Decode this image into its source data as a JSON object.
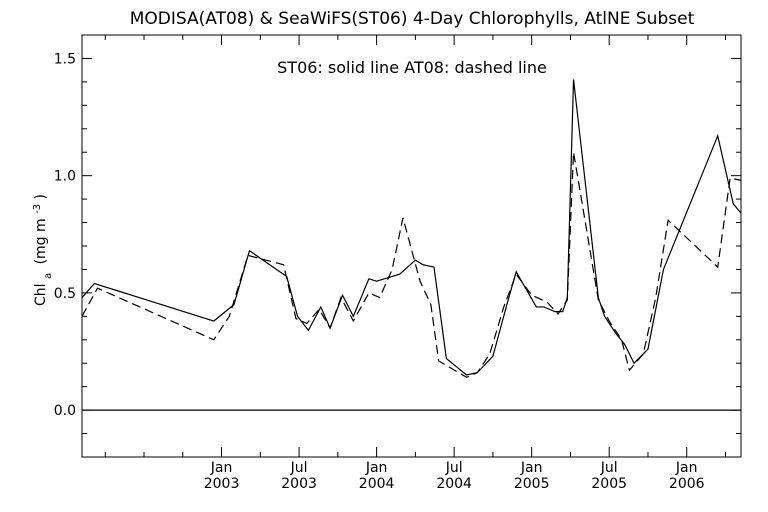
{
  "chart_data": {
    "type": "line",
    "title": "MODISA(AT08) & SeaWiFS(ST06) 4-Day Chlorophylls, AtlNE Subset",
    "annotation": "ST06: solid line   AT08: dashed line",
    "ylabel": "Chl",
    "ylabel_sub": "a",
    "ylabel_unit_prefix": "(mg m",
    "ylabel_unit_sup": "-3",
    "ylabel_unit_suffix": ")",
    "ylim": [
      -0.2,
      1.6
    ],
    "xlim": [
      2002.1,
      2006.35
    ],
    "y_ticks": [
      0.0,
      0.5,
      1.0,
      1.5
    ],
    "y_tick_labels": [
      "0.0",
      "0.5",
      "1.0",
      "1.5"
    ],
    "x_ticks": [
      2003.0,
      2003.5,
      2004.0,
      2004.5,
      2005.0,
      2005.5,
      2006.0
    ],
    "x_tick_labels_top": [
      "Jan",
      "Jul",
      "Jan",
      "Jul",
      "Jan",
      "Jul",
      "Jan"
    ],
    "x_tick_labels_bottom": [
      "2003",
      "2003",
      "2004",
      "2004",
      "2005",
      "2005",
      "2006"
    ],
    "zero_line": true,
    "grid": false,
    "series": [
      {
        "name": "ST06",
        "line_style": "solid",
        "x": [
          2002.1,
          2002.18,
          2002.95,
          2003.08,
          2003.18,
          2003.42,
          2003.49,
          2003.56,
          2003.64,
          2003.7,
          2003.78,
          2003.85,
          2003.95,
          2004.0,
          2004.1,
          2004.15,
          2004.25,
          2004.3,
          2004.37,
          2004.45,
          2004.58,
          2004.65,
          2004.75,
          2004.84,
          2004.9,
          2005.03,
          2005.08,
          2005.15,
          2005.2,
          2005.23,
          2005.27,
          2005.43,
          2005.47,
          2005.54,
          2005.6,
          2005.66,
          2005.75,
          2005.85,
          2006.2,
          2006.3,
          2006.35
        ],
        "y": [
          0.48,
          0.54,
          0.38,
          0.45,
          0.68,
          0.57,
          0.4,
          0.34,
          0.44,
          0.35,
          0.49,
          0.4,
          0.56,
          0.55,
          0.57,
          0.58,
          0.64,
          0.62,
          0.61,
          0.22,
          0.15,
          0.16,
          0.23,
          0.45,
          0.59,
          0.44,
          0.44,
          0.42,
          0.42,
          0.48,
          1.41,
          0.48,
          0.4,
          0.33,
          0.28,
          0.2,
          0.26,
          0.6,
          1.17,
          0.88,
          0.84
        ],
        "style_note": ""
      },
      {
        "name": "AT08",
        "line_style": "dashed",
        "x": [
          2002.1,
          2002.2,
          2002.95,
          2003.05,
          2003.17,
          2003.4,
          2003.48,
          2003.55,
          2003.63,
          2003.7,
          2003.77,
          2003.85,
          2003.95,
          2004.02,
          2004.1,
          2004.17,
          2004.28,
          2004.35,
          2004.4,
          2004.58,
          2004.65,
          2004.73,
          2004.82,
          2004.9,
          2005.0,
          2005.1,
          2005.17,
          2005.23,
          2005.27,
          2005.43,
          2005.5,
          2005.58,
          2005.63,
          2005.72,
          2005.8,
          2005.88,
          2006.2,
          2006.28,
          2006.35
        ],
        "y": [
          0.4,
          0.52,
          0.3,
          0.4,
          0.66,
          0.62,
          0.39,
          0.37,
          0.43,
          0.35,
          0.48,
          0.38,
          0.5,
          0.48,
          0.6,
          0.82,
          0.55,
          0.45,
          0.21,
          0.14,
          0.16,
          0.24,
          0.44,
          0.58,
          0.49,
          0.46,
          0.41,
          0.47,
          1.1,
          0.47,
          0.38,
          0.3,
          0.17,
          0.24,
          0.48,
          0.81,
          0.61,
          0.99,
          0.98
        ],
        "style_note": ""
      }
    ]
  }
}
